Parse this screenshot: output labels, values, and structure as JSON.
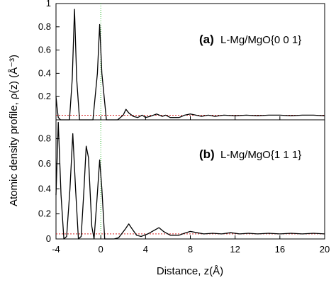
{
  "chart_data": [
    {
      "type": "line",
      "panel_tag": "(a)",
      "panel_name": "L-Mg/MgO{0 0 1}",
      "xlim": [
        -4,
        20
      ],
      "ylim": [
        0,
        1.0
      ],
      "yticks": [
        0,
        0.2,
        0.4,
        0.6,
        0.8,
        1
      ],
      "ytick_labels": [
        "",
        "0.2",
        "0.4",
        "0.6",
        "0.8",
        "1"
      ],
      "reference_lines": {
        "horizontal_y": 0.04,
        "horizontal_color": "#d42020",
        "vertical_x": 0,
        "vertical_color": "#2eb82e"
      },
      "series": [
        {
          "color": "#000000",
          "points": [
            [
              -4,
              0.2
            ],
            [
              -3.9,
              0.1
            ],
            [
              -3.8,
              0.02
            ],
            [
              -3.6,
              0
            ],
            [
              -2.8,
              0
            ],
            [
              -2.55,
              0.35
            ],
            [
              -2.35,
              0.95
            ],
            [
              -2.15,
              0.35
            ],
            [
              -1.9,
              0
            ],
            [
              -0.7,
              0
            ],
            [
              -0.3,
              0.4
            ],
            [
              -0.1,
              0.82
            ],
            [
              0.1,
              0.4
            ],
            [
              0.5,
              0
            ],
            [
              1.5,
              0
            ],
            [
              2.0,
              0.04
            ],
            [
              2.25,
              0.09
            ],
            [
              2.5,
              0.06
            ],
            [
              2.9,
              0.03
            ],
            [
              3.3,
              0.02
            ],
            [
              3.7,
              0.04
            ],
            [
              4.0,
              0.02
            ],
            [
              4.4,
              0.03
            ],
            [
              5.0,
              0.05
            ],
            [
              5.5,
              0.03
            ],
            [
              5.8,
              0.04
            ],
            [
              6.2,
              0.02
            ],
            [
              7.0,
              0.02
            ],
            [
              7.5,
              0.04
            ],
            [
              8.0,
              0.05
            ],
            [
              8.5,
              0.04
            ],
            [
              9.0,
              0.03
            ],
            [
              9.6,
              0.04
            ],
            [
              10.2,
              0.03
            ],
            [
              11.0,
              0.04
            ],
            [
              12.0,
              0.035
            ],
            [
              13.0,
              0.04
            ],
            [
              14.0,
              0.035
            ],
            [
              15.0,
              0.04
            ],
            [
              16.0,
              0.04
            ],
            [
              17.0,
              0.035
            ],
            [
              18.0,
              0.04
            ],
            [
              19.0,
              0.04
            ],
            [
              20.0,
              0.035
            ]
          ]
        }
      ]
    },
    {
      "type": "line",
      "panel_tag": "(b)",
      "panel_name": "L-Mg/MgO{1 1 1}",
      "xlim": [
        -4,
        20
      ],
      "ylim": [
        0,
        0.95
      ],
      "yticks": [
        0,
        0.2,
        0.4,
        0.6,
        0.8
      ],
      "ytick_labels": [
        "0",
        "0.2",
        "0.4",
        "0.6",
        "0.8"
      ],
      "xticks": [
        -4,
        0,
        4,
        8,
        12,
        16,
        20
      ],
      "xtick_labels": [
        "-4",
        "0",
        "4",
        "8",
        "12",
        "16",
        "20"
      ],
      "reference_lines": {
        "horizontal_y": 0.04,
        "horizontal_color": "#d42020",
        "vertical_x": 0,
        "vertical_color": "#2eb82e"
      },
      "series": [
        {
          "color": "#000000",
          "points": [
            [
              -4,
              0.35
            ],
            [
              -3.8,
              0.93
            ],
            [
              -3.55,
              0.35
            ],
            [
              -3.3,
              0
            ],
            [
              -3.05,
              0.02
            ],
            [
              -2.75,
              0.4
            ],
            [
              -2.5,
              0.84
            ],
            [
              -2.25,
              0.4
            ],
            [
              -2.0,
              0
            ],
            [
              -1.75,
              0.02
            ],
            [
              -1.5,
              0.4
            ],
            [
              -1.3,
              0.74
            ],
            [
              -1.1,
              0.65
            ],
            [
              -0.8,
              0.1
            ],
            [
              -0.6,
              0
            ],
            [
              -0.35,
              0.3
            ],
            [
              -0.1,
              0.63
            ],
            [
              0.1,
              0.4
            ],
            [
              0.35,
              0
            ],
            [
              1.2,
              0
            ],
            [
              1.6,
              0.01
            ],
            [
              2.2,
              0.08
            ],
            [
              2.5,
              0.12
            ],
            [
              2.8,
              0.08
            ],
            [
              3.2,
              0.03
            ],
            [
              3.6,
              0.02
            ],
            [
              4.2,
              0.04
            ],
            [
              4.8,
              0.07
            ],
            [
              5.2,
              0.09
            ],
            [
              5.6,
              0.06
            ],
            [
              6.2,
              0.03
            ],
            [
              7.0,
              0.03
            ],
            [
              7.6,
              0.05
            ],
            [
              8.0,
              0.06
            ],
            [
              8.6,
              0.05
            ],
            [
              9.2,
              0.04
            ],
            [
              10.0,
              0.045
            ],
            [
              10.8,
              0.04
            ],
            [
              11.6,
              0.05
            ],
            [
              12.4,
              0.04
            ],
            [
              13.2,
              0.045
            ],
            [
              14.0,
              0.04
            ],
            [
              15.0,
              0.045
            ],
            [
              16.0,
              0.04
            ],
            [
              17.0,
              0.045
            ],
            [
              18.0,
              0.04
            ],
            [
              19.0,
              0.045
            ],
            [
              20.0,
              0.04
            ]
          ]
        }
      ]
    }
  ],
  "ylabel": "Atomic density profile, ρ(z) (Å⁻³)",
  "xlabel": "Distance, z(Å)"
}
